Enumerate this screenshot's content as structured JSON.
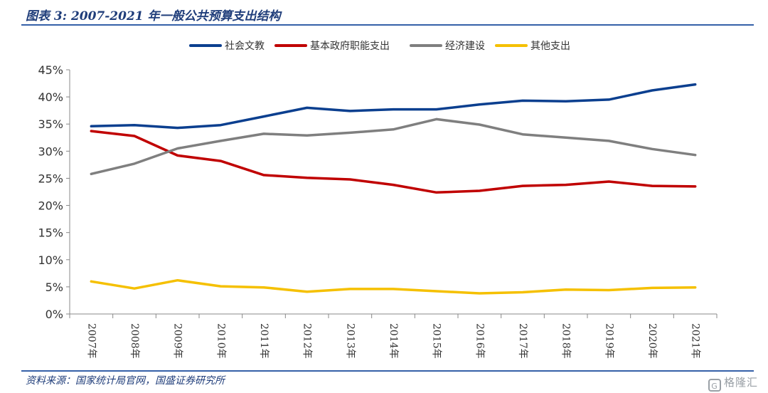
{
  "title": "图表 3:  2007-2021 年一般公共预算支出结构",
  "source": "资料来源：国家统计局官网，国盛证券研究所",
  "watermark": "格隆汇",
  "chart_data": {
    "type": "line",
    "x": [
      "2007年",
      "2008年",
      "2009年",
      "2010年",
      "2011年",
      "2012年",
      "2013年",
      "2014年",
      "2015年",
      "2016年",
      "2017年",
      "2018年",
      "2019年",
      "2020年",
      "2021年"
    ],
    "ylim": [
      0,
      45
    ],
    "yticks": [
      "0%",
      "5%",
      "10%",
      "15%",
      "20%",
      "25%",
      "30%",
      "35%",
      "40%",
      "45%"
    ],
    "ytick_values": [
      0,
      5,
      10,
      15,
      20,
      25,
      30,
      35,
      40,
      45
    ],
    "grid": false,
    "legend_position": "top",
    "series": [
      {
        "name": "社会文教",
        "color": "#0b3f8f",
        "values": [
          34.6,
          34.8,
          34.3,
          34.8,
          36.4,
          38.0,
          37.4,
          37.7,
          37.7,
          38.6,
          39.3,
          39.2,
          39.5,
          41.2,
          42.3
        ]
      },
      {
        "name": "基本政府职能支出",
        "color": "#c00000",
        "values": [
          33.7,
          32.8,
          29.2,
          28.2,
          25.6,
          25.1,
          24.8,
          23.8,
          22.4,
          22.7,
          23.6,
          23.8,
          24.4,
          23.6,
          23.5
        ]
      },
      {
        "name": "经济建设",
        "color": "#7f7f7f",
        "values": [
          25.8,
          27.7,
          30.5,
          31.9,
          33.2,
          32.9,
          33.4,
          34.0,
          35.9,
          34.9,
          33.1,
          32.5,
          31.9,
          30.4,
          29.3
        ]
      },
      {
        "name": "其他支出",
        "color": "#f5c000",
        "values": [
          6.0,
          4.7,
          6.2,
          5.1,
          4.9,
          4.1,
          4.6,
          4.6,
          4.2,
          3.8,
          4.0,
          4.5,
          4.4,
          4.8,
          4.9
        ]
      }
    ]
  }
}
